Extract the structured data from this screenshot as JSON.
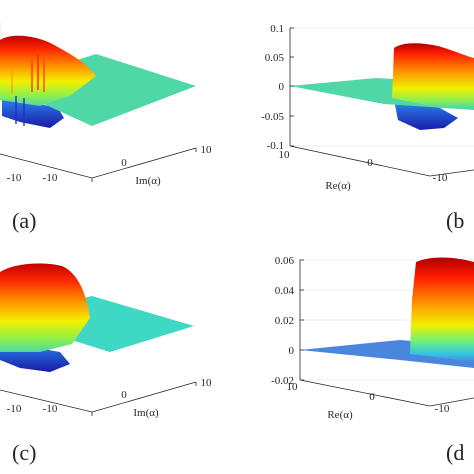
{
  "chart_data": [
    {
      "type": "surface",
      "panel_label": "(a)",
      "ylabel": "Im(α)",
      "x_ticks": [
        "-10"
      ],
      "y_ticks": [
        "-10",
        "0",
        "10"
      ],
      "z_ticks": [],
      "base_color": "#4fd7a6",
      "spikes": true
    },
    {
      "type": "surface",
      "panel_label": "(b",
      "xlabel": "Re(α)",
      "x_ticks": [
        "10",
        "0",
        "-10"
      ],
      "y_ticks": [],
      "z_ticks": [
        "0.1",
        "0.05",
        "0",
        "-0.05",
        "-0.1"
      ],
      "zlim": [
        -0.1,
        0.1
      ],
      "base_color": "#4fd7a6"
    },
    {
      "type": "surface",
      "panel_label": "(c)",
      "ylabel": "Im(α)",
      "x_ticks": [
        "-10"
      ],
      "y_ticks": [
        "-10",
        "0",
        "10"
      ],
      "z_ticks": [],
      "base_color": "#3fd8c4"
    },
    {
      "type": "surface",
      "panel_label": "(d",
      "xlabel": "Re(α)",
      "x_ticks": [
        "10",
        "0",
        "-10"
      ],
      "y_ticks": [],
      "z_ticks": [
        "0.06",
        "0.04",
        "0.02",
        "0",
        "-0.02"
      ],
      "zlim": [
        -0.02,
        0.06
      ],
      "base_color": "#4a86de"
    }
  ],
  "colors": {
    "axis": "#262626",
    "grid": "#d9d9d9"
  }
}
